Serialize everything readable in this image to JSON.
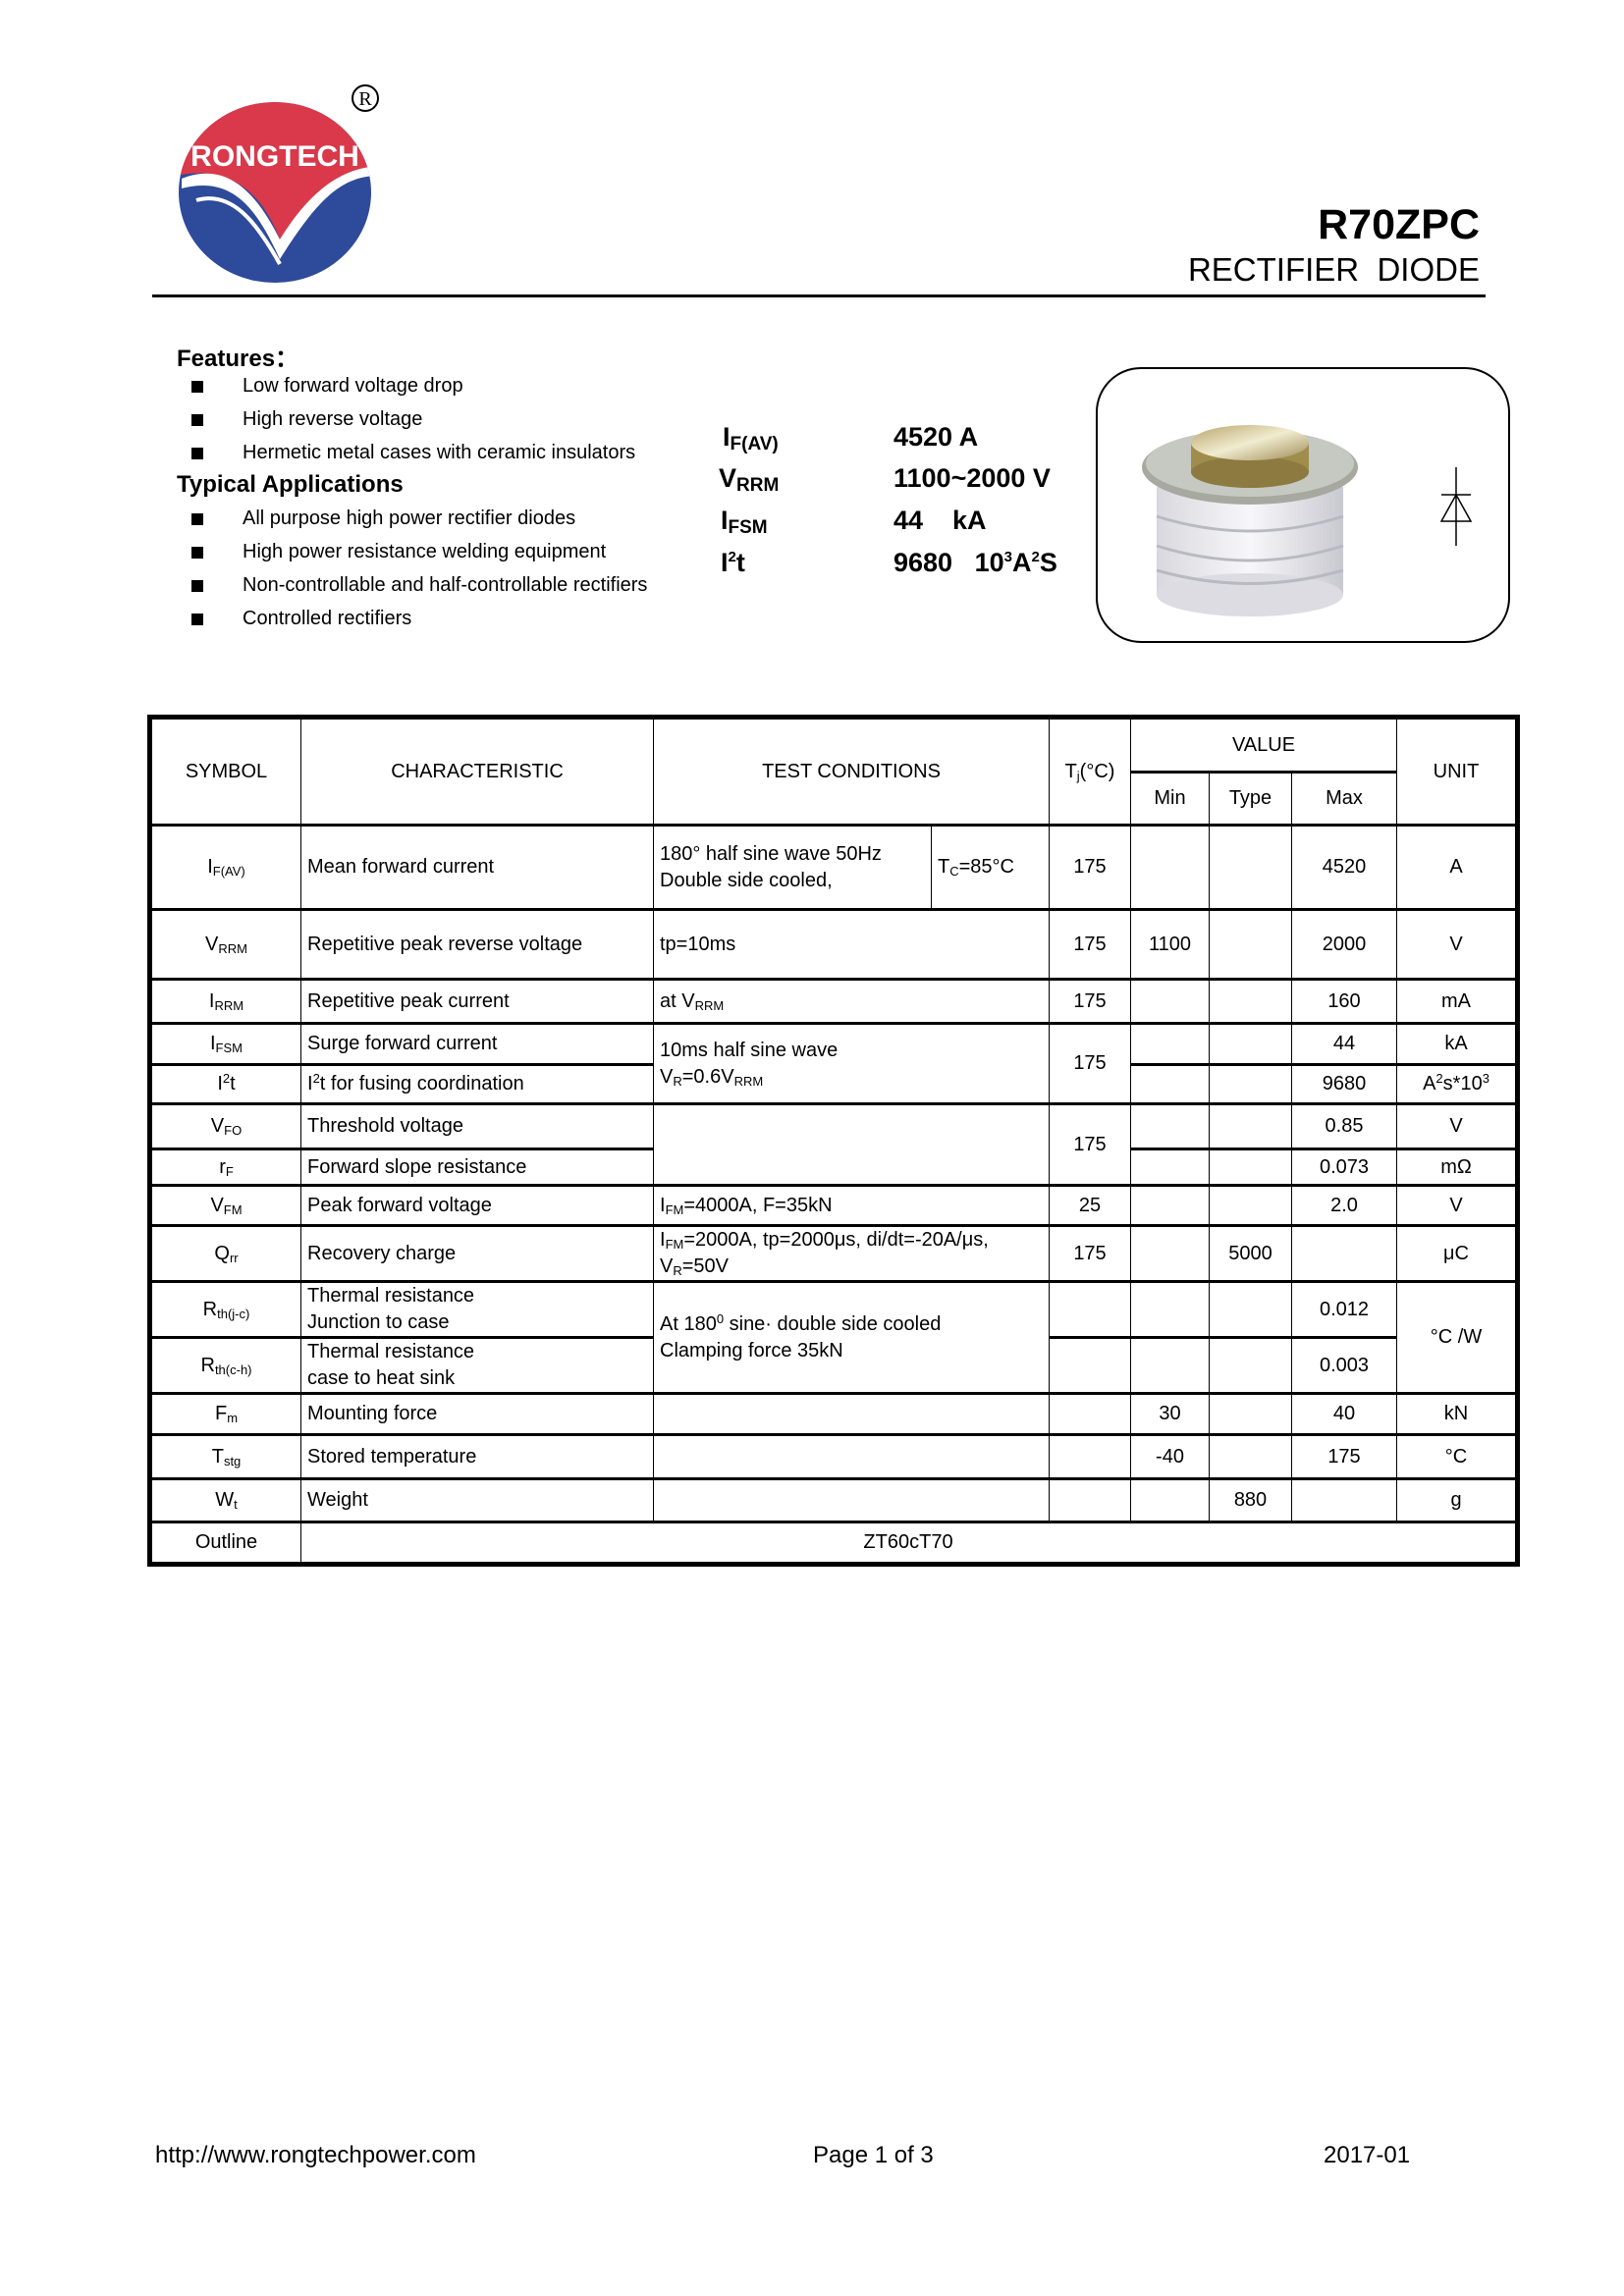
{
  "header": {
    "brand": "RONGTECH",
    "registered": "®",
    "part_number": "R70ZPC",
    "device_type": "RECTIFIER  DIODE"
  },
  "features": {
    "title": "Features：",
    "items": [
      "Low forward voltage drop",
      "High reverse voltage",
      "Hermetic metal cases with ceramic insulators"
    ]
  },
  "applications": {
    "title": "Typical Applications",
    "items": [
      "All purpose high power rectifier diodes",
      "High power resistance welding equipment",
      "Non-controllable and half-controllable rectifiers",
      "Controlled rectifiers"
    ]
  },
  "key_specs": [
    {
      "base": "I",
      "sub": "F(AV)",
      "value": "4520 A"
    },
    {
      "base": "V",
      "sub": "RRM",
      "value": "1100~2000 V"
    },
    {
      "base": "I",
      "sub": "FSM",
      "value": "44    kA"
    },
    {
      "base": "I",
      "sup": "2",
      "after": "t",
      "value": "9680",
      "unit_a": "10",
      "unit_sup1": "3",
      "unit_b": "A",
      "unit_sup2": "2",
      "unit_c": "S"
    }
  ],
  "table": {
    "headers": {
      "symbol": "SYMBOL",
      "characteristic": "CHARACTERISTIC",
      "test_conditions": "TEST CONDITIONS",
      "tj_a": "T",
      "tj_sub": "j",
      "tj_b": "(°C)",
      "value": "VALUE",
      "min": "Min",
      "type": "Type",
      "max": "Max",
      "unit": "UNIT"
    },
    "rows": [
      {
        "sym": "I",
        "sub": "F(AV)",
        "char": "Mean forward current",
        "cond1": "180° half sine wave 50Hz",
        "cond2": "Double side cooled,",
        "tc_a": "T",
        "tc_sub": "C",
        "tc_b": "=85°C",
        "tj": "175",
        "min": "",
        "type": "",
        "max": "4520",
        "unit": "A"
      },
      {
        "sym": "V",
        "sub": "RRM",
        "char": "Repetitive peak reverse voltage",
        "cond": "tp=10ms",
        "tj": "175",
        "min": "1100",
        "type": "",
        "max": "2000",
        "unit": "V"
      },
      {
        "sym": "I",
        "sub": "RRM",
        "char": "Repetitive peak current",
        "cond_a": "at V",
        "cond_sub": "RRM",
        "tj": "175",
        "max": "160",
        "unit": "mA"
      },
      {
        "sym": "I",
        "sub": "FSM",
        "char": "Surge forward current",
        "cond1": "10ms half sine wave",
        "cond2_a": "V",
        "cond2_sub1": "R",
        "cond2_b": "=0.6V",
        "cond2_sub2": "RRM",
        "tj": "175",
        "max": "44",
        "unit": "kA"
      },
      {
        "sym": "I",
        "sup": "2",
        "after": "t",
        "char_a": "I",
        "char_sup": "2",
        "char_b": "t for fusing coordination",
        "max": "9680",
        "unit_a": "A",
        "unit_sup1": "2",
        "unit_b": "s*10",
        "unit_sup2": "3"
      },
      {
        "sym": "V",
        "sub": "FO",
        "char": "Threshold voltage",
        "tj": "175",
        "max": "0.85",
        "unit": "V"
      },
      {
        "sym": "r",
        "sub": "F",
        "char": "Forward slope resistance",
        "max": "0.073",
        "unit": "mΩ"
      },
      {
        "sym": "V",
        "sub": "FM",
        "char": "Peak forward voltage",
        "cond_a": "I",
        "cond_sub": "FM",
        "cond_b": "=4000A, F=35kN",
        "tj": "25",
        "max": "2.0",
        "unit": "V"
      },
      {
        "sym": "Q",
        "sub": "rr",
        "char": "Recovery charge",
        "cond1_a": "I",
        "cond1_sub": "FM",
        "cond1_b": "=2000A, tp=2000μs, di/dt=-20A/μs,",
        "cond2_a": "V",
        "cond2_sub": "R",
        "cond2_b": "=50V",
        "tj": "175",
        "type": "5000",
        "unit": "μC"
      },
      {
        "sym": "R",
        "sub": "th(j-c)",
        "char1": "Thermal resistance",
        "char2": "Junction to case",
        "cond1_a": "At 180",
        "cond1_sup": "0",
        "cond1_b": " sine· double side cooled",
        "cond2": "Clamping force 35kN",
        "max": "0.012",
        "unit": "°C /W"
      },
      {
        "sym": "R",
        "sub": "th(c-h)",
        "char1": "Thermal resistance",
        "char2": "case to heat sink",
        "max": "0.003"
      },
      {
        "sym": "F",
        "sub": "m",
        "char": "Mounting force",
        "min": "30",
        "max": "40",
        "unit": "kN"
      },
      {
        "sym": "T",
        "sub": "stg",
        "char": "Stored temperature",
        "min": "-40",
        "max": "175",
        "unit": "°C"
      },
      {
        "sym": "W",
        "sub": "t",
        "char": "Weight",
        "type": "880",
        "unit": "g"
      },
      {
        "sym": "Outline",
        "value": "ZT60cT70"
      }
    ]
  },
  "footer": {
    "url": "http://www.rongtechpower.com",
    "page": "Page 1 of 3",
    "date": "2017-01"
  },
  "colors": {
    "logo_red": "#d9394a",
    "logo_blue": "#2e4a9a"
  }
}
